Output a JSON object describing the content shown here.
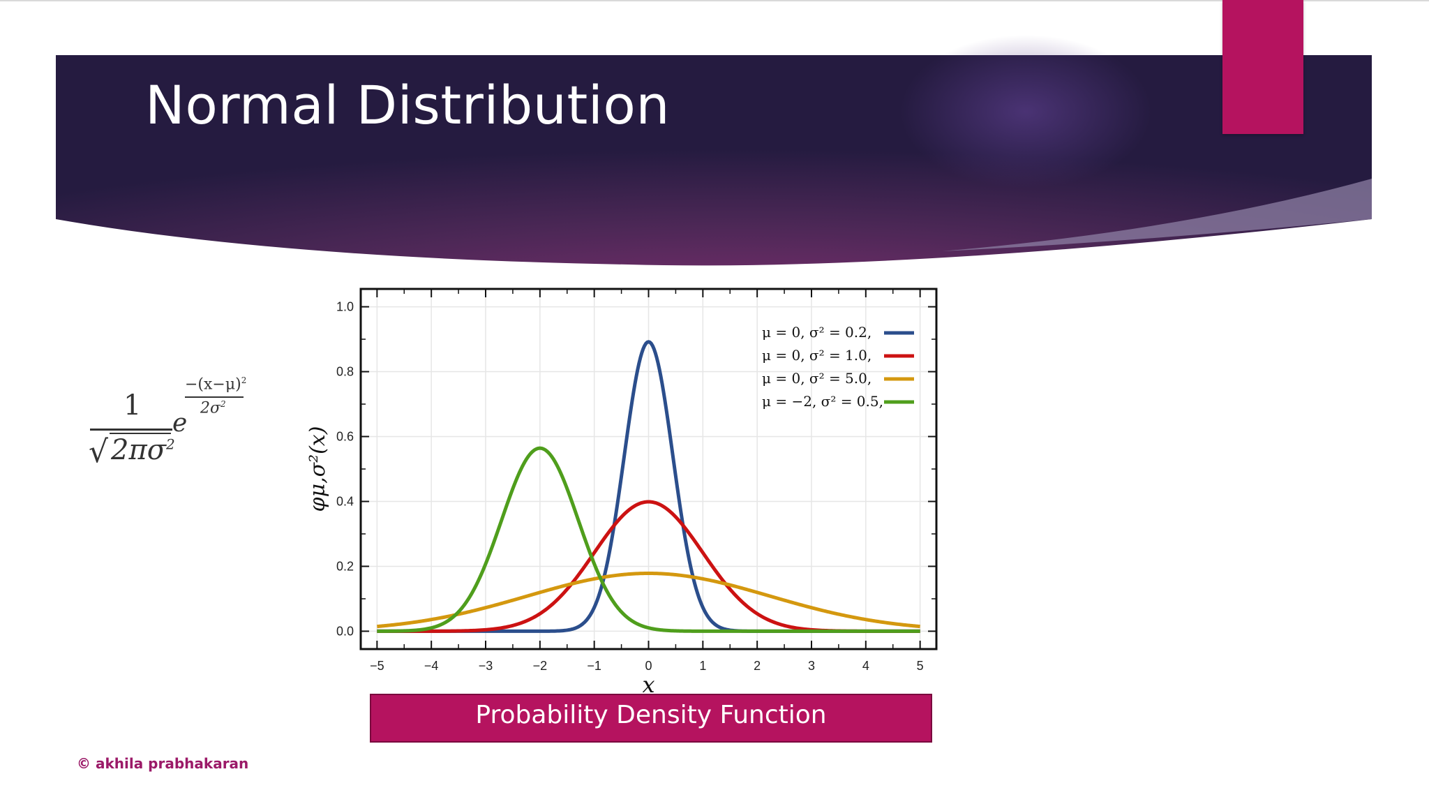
{
  "slide": {
    "title": "Normal Distribution",
    "caption": "Probability Density Function",
    "copyright": "© akhila prabhakaran"
  },
  "colors": {
    "banner_dark": "#2b1d47",
    "banner_mid": "#6a2c68",
    "accent": "#b5135f",
    "copyright": "#9b1a68"
  },
  "formula": {
    "numerator": "1",
    "radical": "√",
    "denominator": "2πσ",
    "denominator_power": "2",
    "base": "e",
    "exponent_numerator": "−(x−μ)",
    "exponent_numerator_power": "2",
    "exponent_denominator": "2σ",
    "exponent_denominator_power": "2"
  },
  "chart_data": {
    "type": "line",
    "title": "",
    "xlabel": "x",
    "ylabel": "φμ,σ²(x)",
    "xlim": [
      -5.3,
      5.3
    ],
    "ylim": [
      -0.055,
      1.055
    ],
    "x_ticks": [
      "−5",
      "−4",
      "−3",
      "−2",
      "−1",
      "0",
      "1",
      "2",
      "3",
      "4",
      "5"
    ],
    "y_ticks": [
      "0.0",
      "0.2",
      "0.4",
      "0.6",
      "0.8",
      "1.0"
    ],
    "grid": true,
    "legend_position": "top-right",
    "series": [
      {
        "name": "μ = 0,    σ² = 0.2,",
        "mu": 0,
        "sigma2": 0.2,
        "color": "#2b4e8c",
        "peak": 0.892
      },
      {
        "name": "μ = 0,    σ² = 1.0,",
        "mu": 0,
        "sigma2": 1.0,
        "color": "#cc1212",
        "peak": 0.399
      },
      {
        "name": "μ = 0,    σ² = 5.0,",
        "mu": 0,
        "sigma2": 5.0,
        "color": "#d4980f",
        "peak": 0.178
      },
      {
        "name": "μ = −2,  σ² = 0.5,",
        "mu": -2,
        "sigma2": 0.5,
        "color": "#4f9e1c",
        "peak": 0.564
      }
    ]
  }
}
